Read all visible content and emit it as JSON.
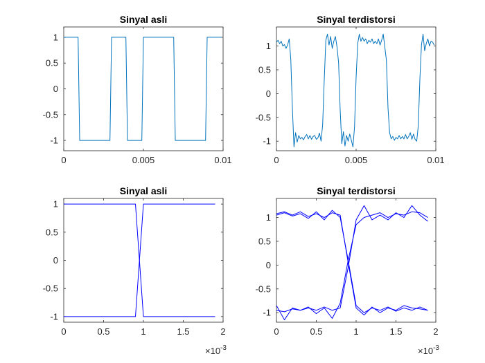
{
  "chart_data": [
    {
      "type": "line",
      "title": "Sinyal asli",
      "xlim": [
        0,
        0.01
      ],
      "ylim": [
        -1.2,
        1.2
      ],
      "xticks": [
        0,
        0.005,
        0.01
      ],
      "xtick_labels": [
        "0",
        "0.005",
        "0.01"
      ],
      "yticks": [
        -1,
        -0.5,
        0,
        0.5,
        1
      ],
      "ytick_labels": [
        "-1",
        "-0.5",
        "0",
        "0.5",
        "1"
      ],
      "grid": false,
      "color": "#0072bd",
      "series": [
        {
          "x": [
            0,
            0.0009,
            0.001,
            0.0029,
            0.003,
            0.0039,
            0.004,
            0.0049,
            0.005,
            0.0069,
            0.007,
            0.0089,
            0.009,
            0.0099
          ],
          "y": [
            1,
            1,
            -1,
            -1,
            1,
            1,
            -1,
            -1,
            1,
            1,
            -1,
            -1,
            1,
            1
          ]
        }
      ]
    },
    {
      "type": "line",
      "title": "Sinyal terdistorsi",
      "xlim": [
        0,
        0.01
      ],
      "ylim": [
        -1.2,
        1.4
      ],
      "xticks": [
        0,
        0.005,
        0.01
      ],
      "xtick_labels": [
        "0",
        "0.005",
        "0.01"
      ],
      "yticks": [
        -1,
        -0.5,
        0,
        0.5,
        1
      ],
      "ytick_labels": [
        "-1",
        "-0.5",
        "0",
        "0.5",
        "1"
      ],
      "grid": false,
      "color": "#0072bd",
      "series": [
        {
          "x": [
            0,
            0.0001,
            0.0002,
            0.0003,
            0.0004,
            0.0005,
            0.0006,
            0.0007,
            0.0008,
            0.0009,
            0.001,
            0.0011,
            0.0012,
            0.0013,
            0.0014,
            0.0015,
            0.0016,
            0.0017,
            0.0018,
            0.0019,
            0.002,
            0.0021,
            0.0022,
            0.0023,
            0.0024,
            0.0025,
            0.0026,
            0.0027,
            0.0028,
            0.0029,
            0.003,
            0.0031,
            0.0032,
            0.0033,
            0.0034,
            0.0035,
            0.0036,
            0.0037,
            0.0038,
            0.0039,
            0.004,
            0.0041,
            0.0042,
            0.0043,
            0.0044,
            0.0045,
            0.0046,
            0.0047,
            0.0048,
            0.0049,
            0.005,
            0.0051,
            0.0052,
            0.0053,
            0.0054,
            0.0055,
            0.0056,
            0.0057,
            0.0058,
            0.0059,
            0.006,
            0.0061,
            0.0062,
            0.0063,
            0.0064,
            0.0065,
            0.0066,
            0.0067,
            0.0068,
            0.0069,
            0.007,
            0.0071,
            0.0072,
            0.0073,
            0.0074,
            0.0075,
            0.0076,
            0.0077,
            0.0078,
            0.0079,
            0.008,
            0.0081,
            0.0082,
            0.0083,
            0.0084,
            0.0085,
            0.0086,
            0.0087,
            0.0088,
            0.0089,
            0.009,
            0.0091,
            0.0092,
            0.0093,
            0.0094,
            0.0095,
            0.0096,
            0.0097,
            0.0098,
            0.0099
          ],
          "y": [
            1.08,
            1.12,
            1.05,
            1.1,
            1.0,
            1.03,
            0.95,
            1.02,
            1.15,
            0.72,
            -0.3,
            -1.12,
            -0.82,
            -1.02,
            -0.88,
            -0.95,
            -0.92,
            -0.97,
            -0.9,
            -0.86,
            -0.95,
            -0.88,
            -0.96,
            -0.9,
            -0.88,
            -0.96,
            -0.93,
            -0.83,
            -1.0,
            -0.65,
            0.3,
            1.12,
            1.25,
            1.02,
            1.2,
            0.95,
            1.1,
            1.2,
            0.98,
            0.65,
            -0.35,
            -1.05,
            -0.8,
            -1.1,
            -0.88,
            -1.0,
            -0.85,
            -0.98,
            -1.12,
            -0.7,
            0.35,
            1.05,
            1.25,
            1.1,
            1.18,
            1.1,
            1.15,
            1.05,
            1.12,
            1.08,
            1.15,
            1.05,
            1.1,
            1.05,
            1.15,
            1.02,
            1.12,
            1.25,
            0.98,
            0.7,
            -0.3,
            -0.82,
            -0.95,
            -0.9,
            -0.98,
            -0.92,
            -0.95,
            -0.88,
            -0.95,
            -0.9,
            -0.95,
            -0.86,
            -0.95,
            -0.9,
            -0.82,
            -0.96,
            -0.85,
            -0.96,
            -1.0,
            -0.68,
            0.3,
            1.02,
            1.25,
            0.9,
            1.05,
            1.15,
            1.0,
            1.1,
            1.08,
            1.02
          ]
        }
      ]
    },
    {
      "type": "line",
      "title": "Sinyal asli",
      "xlim": [
        0,
        0.002
      ],
      "ylim": [
        -1.1,
        1.1
      ],
      "xticks": [
        0,
        0.0005,
        0.001,
        0.0015,
        0.002
      ],
      "xtick_labels": [
        "0",
        "0.5",
        "1",
        "1.5",
        "2"
      ],
      "yticks": [
        -1,
        -0.5,
        0,
        0.5,
        1
      ],
      "ytick_labels": [
        "-1",
        "-0.5",
        "0",
        "0.5",
        "1"
      ],
      "exponent_label": "×10",
      "exponent_power": "-3",
      "grid": false,
      "color": "#0000ff",
      "series": [
        {
          "x": [
            0,
            0.0009,
            0.001,
            0.0019
          ],
          "y": [
            1,
            1,
            -1,
            -1
          ]
        },
        {
          "x": [
            0,
            0.0009,
            0.001,
            0.0019
          ],
          "y": [
            -1,
            -1,
            1,
            1
          ]
        }
      ]
    },
    {
      "type": "line",
      "title": "Sinyal terdistorsi",
      "xlim": [
        0,
        0.002
      ],
      "ylim": [
        -1.2,
        1.4
      ],
      "xticks": [
        0,
        0.0005,
        0.001,
        0.0015,
        0.002
      ],
      "xtick_labels": [
        "0",
        "0.5",
        "1",
        "1.5",
        "2"
      ],
      "yticks": [
        -1,
        -0.5,
        0,
        0.5,
        1
      ],
      "ytick_labels": [
        "-1",
        "-0.5",
        "0",
        "0.5",
        "1"
      ],
      "exponent_label": "×10",
      "exponent_power": "-3",
      "grid": false,
      "color": "#0000ff",
      "series": [
        {
          "x": [
            0,
            0.0001,
            0.0002,
            0.0003,
            0.0004,
            0.0005,
            0.0006,
            0.0007,
            0.0008,
            0.0009,
            0.001,
            0.0011,
            0.0012,
            0.0013,
            0.0014,
            0.0015,
            0.0016,
            0.0017,
            0.0018,
            0.0019
          ],
          "y": [
            1.05,
            1.1,
            1.03,
            1.08,
            0.98,
            1.12,
            0.95,
            1.15,
            1.0,
            0.1,
            -0.85,
            -1.0,
            -0.9,
            -0.95,
            -0.88,
            -0.97,
            -0.9,
            -0.95,
            -0.88,
            -0.95
          ]
        },
        {
          "x": [
            0,
            0.0001,
            0.0002,
            0.0003,
            0.0004,
            0.0005,
            0.0006,
            0.0007,
            0.0008,
            0.0009,
            0.001,
            0.0011,
            0.0012,
            0.0013,
            0.0014,
            0.0015,
            0.0016,
            0.0017,
            0.0018,
            0.0019
          ],
          "y": [
            1.08,
            1.12,
            1.05,
            1.12,
            1.02,
            1.08,
            1.0,
            1.1,
            1.05,
            0.05,
            -0.9,
            -1.05,
            -0.88,
            -1.0,
            -0.9,
            -0.95,
            -0.85,
            -0.9,
            -0.92,
            -0.95
          ]
        },
        {
          "x": [
            0,
            0.0001,
            0.0002,
            0.0003,
            0.0004,
            0.0005,
            0.0006,
            0.0007,
            0.0008,
            0.0009,
            0.001,
            0.0011,
            0.0012,
            0.0013,
            0.0014,
            0.0015,
            0.0016,
            0.0017,
            0.0018,
            0.0019
          ],
          "y": [
            -0.85,
            -1.15,
            -0.9,
            -0.95,
            -0.88,
            -1.02,
            -0.9,
            -1.12,
            -0.8,
            0.1,
            0.85,
            1.0,
            1.05,
            1.1,
            1.0,
            1.08,
            1.05,
            1.12,
            1.1,
            1.0
          ]
        },
        {
          "x": [
            0,
            0.0001,
            0.0002,
            0.0003,
            0.0004,
            0.0005,
            0.0006,
            0.0007,
            0.0008,
            0.0009,
            0.001,
            0.0011,
            0.0012,
            0.0013,
            0.0014,
            0.0015,
            0.0016,
            0.0017,
            0.0018,
            0.0019
          ],
          "y": [
            -0.95,
            -0.98,
            -0.92,
            -0.95,
            -0.9,
            -0.95,
            -0.88,
            -0.95,
            -0.9,
            -0.05,
            0.95,
            1.25,
            0.95,
            1.05,
            0.95,
            1.1,
            1.0,
            1.25,
            1.05,
            0.92
          ]
        }
      ]
    }
  ]
}
